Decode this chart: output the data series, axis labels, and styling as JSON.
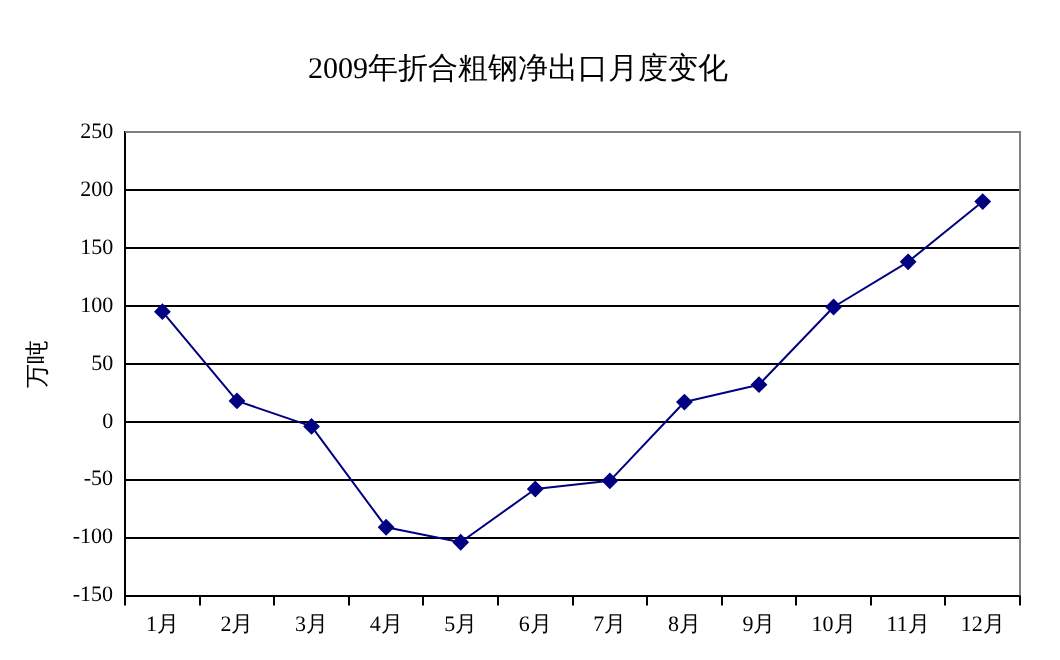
{
  "chart_data": {
    "type": "line",
    "title": "2009年折合粗钢净出口月度变化",
    "ylabel": "万吨",
    "categories": [
      "1月",
      "2月",
      "3月",
      "4月",
      "5月",
      "6月",
      "7月",
      "8月",
      "9月",
      "10月",
      "11月",
      "12月"
    ],
    "series": [
      {
        "color": "#000080",
        "values": [
          95,
          18,
          -4,
          -91,
          -104,
          -58,
          -51,
          17,
          32,
          99,
          138,
          190
        ]
      }
    ],
    "ylim": [
      -150,
      250
    ],
    "yticks": [
      -150,
      -100,
      -50,
      0,
      50,
      100,
      150,
      200,
      250
    ],
    "grid": "y",
    "legend": false,
    "marker": "diamond",
    "line_style": "solid"
  }
}
